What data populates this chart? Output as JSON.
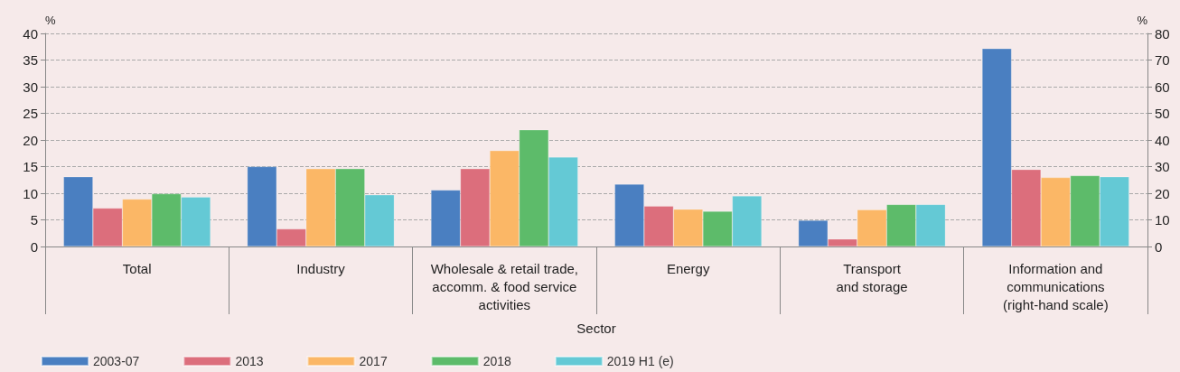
{
  "chart_data": {
    "type": "bar",
    "xlabel": "Sector",
    "ylabel": "%",
    "y2label": "%",
    "categories": [
      "Total",
      "Industry",
      "Wholesale & retail trade,\naccomm. & food service\nactivities",
      "Energy",
      "Transport\nand storage",
      "Information and\ncommunications\n(right-hand scale)"
    ],
    "series": [
      {
        "name": "2003-07",
        "color": "#4a7fc1",
        "values": [
          13.1,
          15.0,
          10.6,
          11.7,
          4.9,
          null
        ]
      },
      {
        "name": "2013",
        "color": "#dc6e7c",
        "values": [
          7.2,
          3.3,
          14.6,
          7.6,
          1.4,
          null
        ]
      },
      {
        "name": "2017",
        "color": "#fbb766",
        "values": [
          8.9,
          14.6,
          18.0,
          7.0,
          6.9,
          null
        ]
      },
      {
        "name": "2018",
        "color": "#5dbb6a",
        "values": [
          9.9,
          14.6,
          21.9,
          6.6,
          7.9,
          null
        ]
      },
      {
        "name": "2019 H1 (e)",
        "color": "#64c9d5",
        "values": [
          9.3,
          9.7,
          16.8,
          9.5,
          7.9,
          null
        ]
      },
      {
        "color": "#4a7fc1",
        "axis": "y2",
        "values": [
          null,
          null,
          null,
          null,
          null,
          74.3
        ]
      },
      {
        "color": "#dc6e7c",
        "axis": "y2",
        "values": [
          null,
          null,
          null,
          null,
          null,
          28.9
        ]
      },
      {
        "color": "#fbb766",
        "axis": "y2",
        "values": [
          null,
          null,
          null,
          null,
          null,
          25.9
        ]
      },
      {
        "color": "#5dbb6a",
        "axis": "y2",
        "values": [
          null,
          null,
          null,
          null,
          null,
          26.6
        ]
      },
      {
        "color": "#64c9d5",
        "axis": "y2",
        "values": [
          null,
          null,
          null,
          null,
          null,
          26.2
        ]
      }
    ],
    "ylim": [
      0,
      40
    ],
    "yticks": [
      0,
      5,
      10,
      15,
      20,
      25,
      30,
      35,
      40
    ],
    "y2lim": [
      0,
      80
    ],
    "y2ticks": [
      0,
      10,
      20,
      30,
      40,
      50,
      60,
      70,
      80
    ],
    "grid": "y",
    "legend": "bottom left"
  }
}
